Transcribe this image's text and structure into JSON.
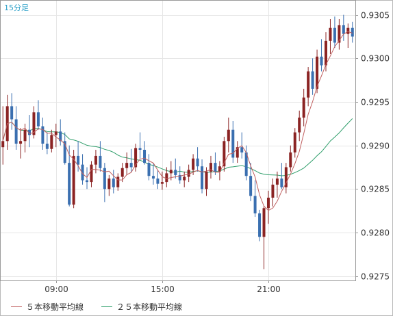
{
  "chart_data": {
    "type": "candlestick",
    "timeframe_label": "15分足",
    "y_axis": {
      "ticks": [
        "0.9305",
        "0.9300",
        "0.9295",
        "0.9290",
        "0.9285",
        "0.9280",
        "0.9275"
      ],
      "ylim": [
        0.92745,
        0.93067
      ]
    },
    "x_axis": {
      "ticks": [
        "09:00",
        "15:00",
        "21:00"
      ]
    },
    "grid": true,
    "legend": [
      {
        "name": "５本移動平均線",
        "color": "#c06060"
      },
      {
        "name": "２５本移動平均線",
        "color": "#2e9e6a"
      }
    ],
    "candle_colors": {
      "up": "#8b2323",
      "down": "#3a6fb0"
    },
    "candles": [
      [
        0.92898,
        0.92945,
        0.92878,
        0.92905
      ],
      [
        0.92905,
        0.92958,
        0.92895,
        0.92945
      ],
      [
        0.92945,
        0.9296,
        0.92918,
        0.9293
      ],
      [
        0.9293,
        0.92945,
        0.92895,
        0.92902
      ],
      [
        0.92902,
        0.9292,
        0.92885,
        0.92905
      ],
      [
        0.92905,
        0.92925,
        0.92892,
        0.92918
      ],
      [
        0.92918,
        0.92935,
        0.92898,
        0.92912
      ],
      [
        0.92912,
        0.92945,
        0.92908,
        0.92938
      ],
      [
        0.92938,
        0.92952,
        0.92918,
        0.92922
      ],
      [
        0.92922,
        0.92932,
        0.92895,
        0.92902
      ],
      [
        0.92902,
        0.92915,
        0.9289,
        0.92896
      ],
      [
        0.92896,
        0.92918,
        0.92892,
        0.92912
      ],
      [
        0.92912,
        0.92925,
        0.92898,
        0.92916
      ],
      [
        0.92916,
        0.9293,
        0.929,
        0.92905
      ],
      [
        0.92905,
        0.92915,
        0.92878,
        0.9288
      ],
      [
        0.9288,
        0.929,
        0.9283,
        0.92832
      ],
      [
        0.92832,
        0.92895,
        0.92828,
        0.92888
      ],
      [
        0.92888,
        0.92905,
        0.9287,
        0.92878
      ],
      [
        0.92878,
        0.9289,
        0.92855,
        0.9286
      ],
      [
        0.9286,
        0.92875,
        0.9285,
        0.92858
      ],
      [
        0.92858,
        0.92882,
        0.92852,
        0.92878
      ],
      [
        0.92878,
        0.92895,
        0.92868,
        0.92888
      ],
      [
        0.92888,
        0.92905,
        0.9287,
        0.92874
      ],
      [
        0.92874,
        0.9288,
        0.92835,
        0.9285
      ],
      [
        0.9285,
        0.92866,
        0.92842,
        0.92862
      ],
      [
        0.92862,
        0.92872,
        0.92845,
        0.92852
      ],
      [
        0.92852,
        0.92868,
        0.92848,
        0.92864
      ],
      [
        0.92864,
        0.9288,
        0.92858,
        0.92874
      ],
      [
        0.92874,
        0.92892,
        0.92866,
        0.9288
      ],
      [
        0.9288,
        0.92896,
        0.9287,
        0.92875
      ],
      [
        0.92875,
        0.92902,
        0.9287,
        0.92897
      ],
      [
        0.92897,
        0.92915,
        0.92885,
        0.92895
      ],
      [
        0.92895,
        0.92905,
        0.92878,
        0.9288
      ],
      [
        0.9288,
        0.9289,
        0.9286,
        0.92865
      ],
      [
        0.92865,
        0.9288,
        0.92855,
        0.92862
      ],
      [
        0.92862,
        0.92872,
        0.9285,
        0.92856
      ],
      [
        0.92856,
        0.9287,
        0.92849,
        0.92858
      ],
      [
        0.92858,
        0.92875,
        0.92852,
        0.92868
      ],
      [
        0.92868,
        0.92882,
        0.9286,
        0.92872
      ],
      [
        0.92872,
        0.92885,
        0.92862,
        0.92866
      ],
      [
        0.92866,
        0.92876,
        0.92856,
        0.9286
      ],
      [
        0.9286,
        0.9287,
        0.92852,
        0.92864
      ],
      [
        0.92864,
        0.92878,
        0.92858,
        0.92872
      ],
      [
        0.92872,
        0.9289,
        0.92866,
        0.92885
      ],
      [
        0.92885,
        0.92898,
        0.9287,
        0.92876
      ],
      [
        0.92876,
        0.92884,
        0.92845,
        0.9285
      ],
      [
        0.9285,
        0.92875,
        0.92842,
        0.9287
      ],
      [
        0.9287,
        0.92888,
        0.92862,
        0.9288
      ],
      [
        0.9288,
        0.92892,
        0.92866,
        0.9287
      ],
      [
        0.9287,
        0.92882,
        0.9286,
        0.92876
      ],
      [
        0.92876,
        0.9291,
        0.9287,
        0.92905
      ],
      [
        0.92905,
        0.92932,
        0.92892,
        0.92918
      ],
      [
        0.92918,
        0.92928,
        0.9288,
        0.92886
      ],
      [
        0.92886,
        0.92905,
        0.9288,
        0.92898
      ],
      [
        0.92898,
        0.92915,
        0.92885,
        0.92892
      ],
      [
        0.92892,
        0.929,
        0.9286,
        0.92865
      ],
      [
        0.92865,
        0.9288,
        0.92836,
        0.92842
      ],
      [
        0.92842,
        0.9286,
        0.92818,
        0.92822
      ],
      [
        0.92822,
        0.92826,
        0.9279,
        0.92795
      ],
      [
        0.92795,
        0.9283,
        0.92758,
        0.92828
      ],
      [
        0.92828,
        0.92848,
        0.9281,
        0.9284
      ],
      [
        0.9284,
        0.92862,
        0.9283,
        0.92855
      ],
      [
        0.92855,
        0.9287,
        0.9284,
        0.92862
      ],
      [
        0.92862,
        0.9288,
        0.9285,
        0.92852
      ],
      [
        0.92852,
        0.9288,
        0.92845,
        0.92875
      ],
      [
        0.92875,
        0.929,
        0.9287,
        0.92892
      ],
      [
        0.92892,
        0.9292,
        0.92886,
        0.92915
      ],
      [
        0.92915,
        0.9294,
        0.92905,
        0.92932
      ],
      [
        0.92932,
        0.92965,
        0.92922,
        0.92955
      ],
      [
        0.92955,
        0.9299,
        0.92945,
        0.92985
      ],
      [
        0.92985,
        0.93,
        0.92958,
        0.92965
      ],
      [
        0.92965,
        0.9301,
        0.9296,
        0.93002
      ],
      [
        0.93002,
        0.93022,
        0.92985,
        0.92992
      ],
      [
        0.92992,
        0.9303,
        0.92985,
        0.9302
      ],
      [
        0.9302,
        0.93045,
        0.93005,
        0.93035
      ],
      [
        0.93035,
        0.93048,
        0.93012,
        0.93018
      ],
      [
        0.93018,
        0.93045,
        0.9301,
        0.93038
      ],
      [
        0.93038,
        0.9305,
        0.9302,
        0.93028
      ],
      [
        0.93028,
        0.9304,
        0.93012,
        0.93035
      ],
      [
        0.93035,
        0.93042,
        0.93018,
        0.93025
      ]
    ]
  }
}
